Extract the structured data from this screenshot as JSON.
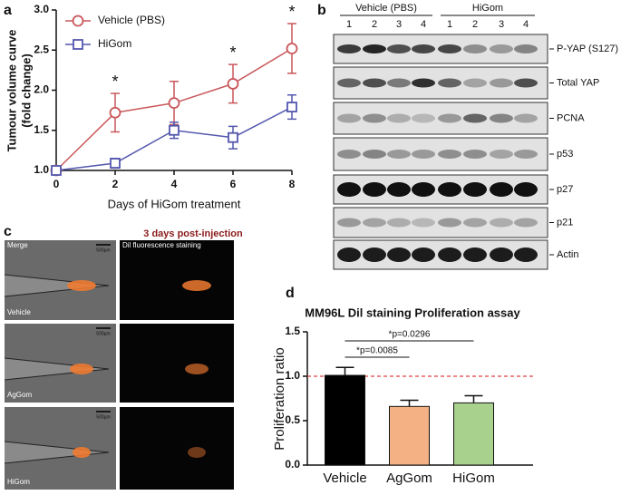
{
  "panel_labels": [
    "a",
    "b",
    "c",
    "d"
  ],
  "chart_data": [
    {
      "type": "line",
      "x_label": "Days of HiGom treatment",
      "y_label": [
        "Tumour volume curve",
        "(fold change)"
      ],
      "x": [
        0,
        2,
        4,
        6,
        8
      ],
      "xlim": [
        0,
        8
      ],
      "xticks": [
        0,
        2,
        4,
        6,
        8
      ],
      "ylim": [
        1.0,
        3.0
      ],
      "yticks": [
        {
          "value": 1.0,
          "label": "1.0"
        },
        {
          "value": 1.5,
          "label": "1.5"
        },
        {
          "value": 2.0,
          "label": "2.0"
        },
        {
          "value": 2.5,
          "label": "2.5"
        },
        {
          "value": 3.0,
          "label": "3.0"
        }
      ],
      "series": [
        {
          "name": "Vehicle (PBS)",
          "color": "#c9575a",
          "marker": "circle",
          "values": [
            1.0,
            1.72,
            1.84,
            2.08,
            2.52
          ],
          "errors": [
            0,
            0.24,
            0.27,
            0.24,
            0.31
          ]
        },
        {
          "name": "HiGom",
          "color": "#5457ad",
          "marker": "square",
          "values": [
            1.0,
            1.09,
            1.5,
            1.41,
            1.79
          ],
          "errors": [
            0,
            0.06,
            0.1,
            0.14,
            0.15
          ]
        }
      ],
      "annotations": [
        {
          "x": 2,
          "text": "*"
        },
        {
          "x": 6,
          "text": "*"
        },
        {
          "x": 8,
          "text": "*"
        }
      ],
      "legend": "upper left"
    },
    {
      "type": "bar",
      "title": "MM96L Dil staining Proliferation assay",
      "y_label": "Proliferation ratio",
      "categories": [
        "Vehicle",
        "AgGom",
        "HiGom"
      ],
      "values": [
        1.01,
        0.66,
        0.7
      ],
      "errors": [
        0.09,
        0.07,
        0.08
      ],
      "colors": [
        "#000000",
        "#f4b183",
        "#a9d18e"
      ],
      "ylim": [
        0,
        1.5
      ],
      "yticks": [
        {
          "value": 0,
          "label": "0.0"
        },
        {
          "value": 0.5,
          "label": "0.5"
        },
        {
          "value": 1.0,
          "label": "1.0"
        },
        {
          "value": 1.5,
          "label": "1.5"
        }
      ],
      "reference_line": 1.0,
      "reference_color": "#e04040",
      "annotations": [
        "*p=0.0085",
        "*p=0.0296"
      ]
    }
  ],
  "blot": {
    "groups": [
      {
        "label": "Vehicle (PBS)",
        "lanes": [
          "1",
          "2",
          "3",
          "4"
        ]
      },
      {
        "label": "HiGom",
        "lanes": [
          "1",
          "2",
          "3",
          "4"
        ]
      }
    ],
    "rows": [
      "P-YAP (S127)",
      "Total YAP",
      "PCNA",
      "p53",
      "p27",
      "p21",
      "Actin"
    ]
  },
  "images": {
    "title": "3 days post-injection",
    "columns": [
      "Merge",
      "Dil fluorescence staining"
    ],
    "rows": [
      "Vehicle",
      "AgGom",
      "HiGom"
    ],
    "scale_bar": "500µm"
  }
}
